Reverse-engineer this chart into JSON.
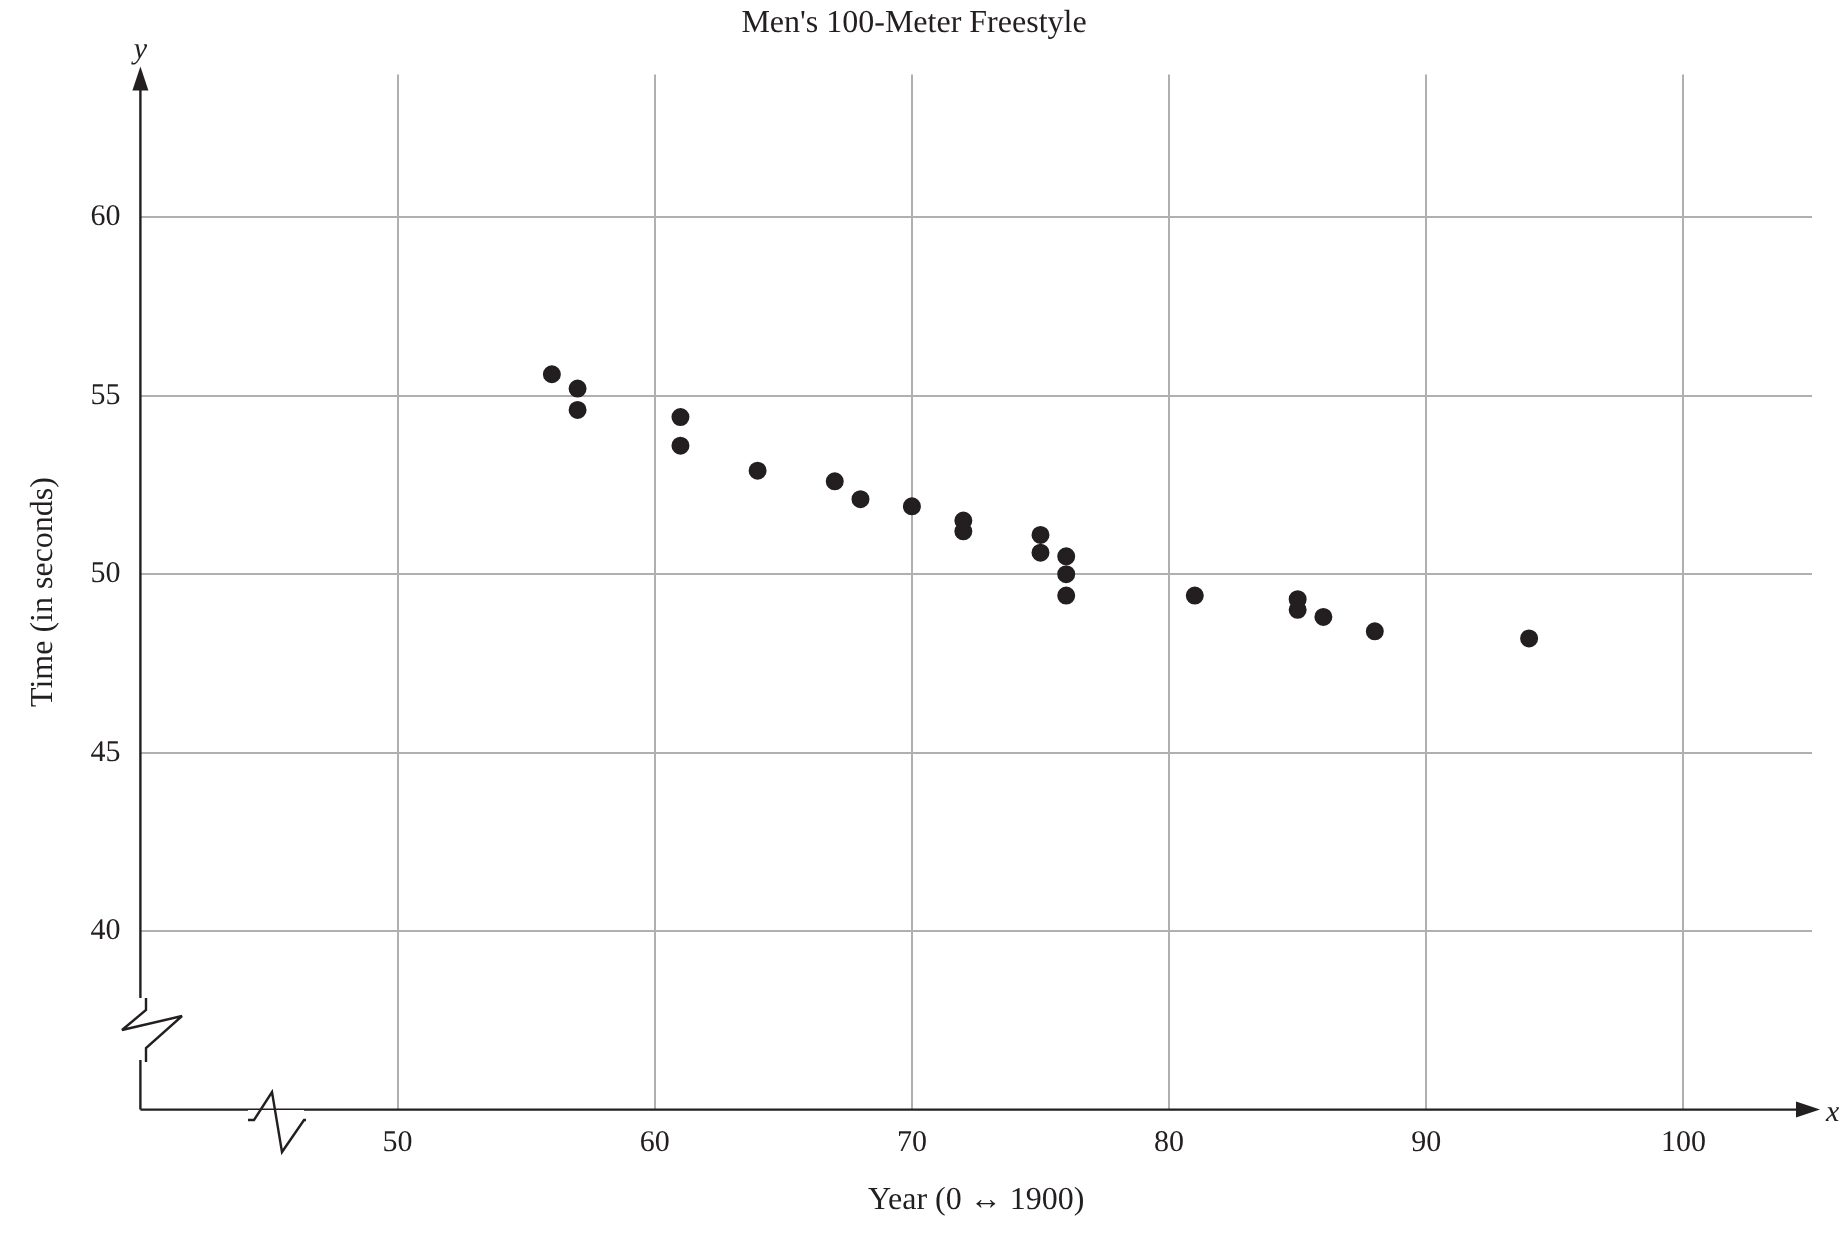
{
  "chart_data": {
    "type": "scatter",
    "title": "Men's 100-Meter Freestyle",
    "xlabel": "Year (0 ↔ 1900)",
    "ylabel": "Time (in seconds)",
    "annotations": [
      "x",
      "y"
    ],
    "x": [
      56,
      57,
      57,
      61,
      61,
      64,
      67,
      68,
      70,
      72,
      72,
      75,
      75,
      76,
      76,
      76,
      81,
      85,
      85,
      86,
      88,
      94
    ],
    "series": [
      {
        "color": "#231f20",
        "values": [
          55.6,
          55.2,
          54.6,
          54.4,
          53.6,
          52.9,
          52.6,
          52.1,
          51.9,
          51.5,
          51.2,
          51.1,
          50.6,
          50.5,
          50.0,
          49.4,
          49.4,
          49.3,
          49.0,
          48.8,
          48.4,
          48.2
        ]
      }
    ],
    "xlim": [
      40,
      105
    ],
    "xticks": [
      50,
      60,
      70,
      80,
      90,
      100
    ],
    "ylim": [
      35,
      64
    ],
    "yticks": [
      40,
      45,
      50,
      55,
      60
    ],
    "grid": true,
    "legend": false,
    "marker": "circle"
  }
}
